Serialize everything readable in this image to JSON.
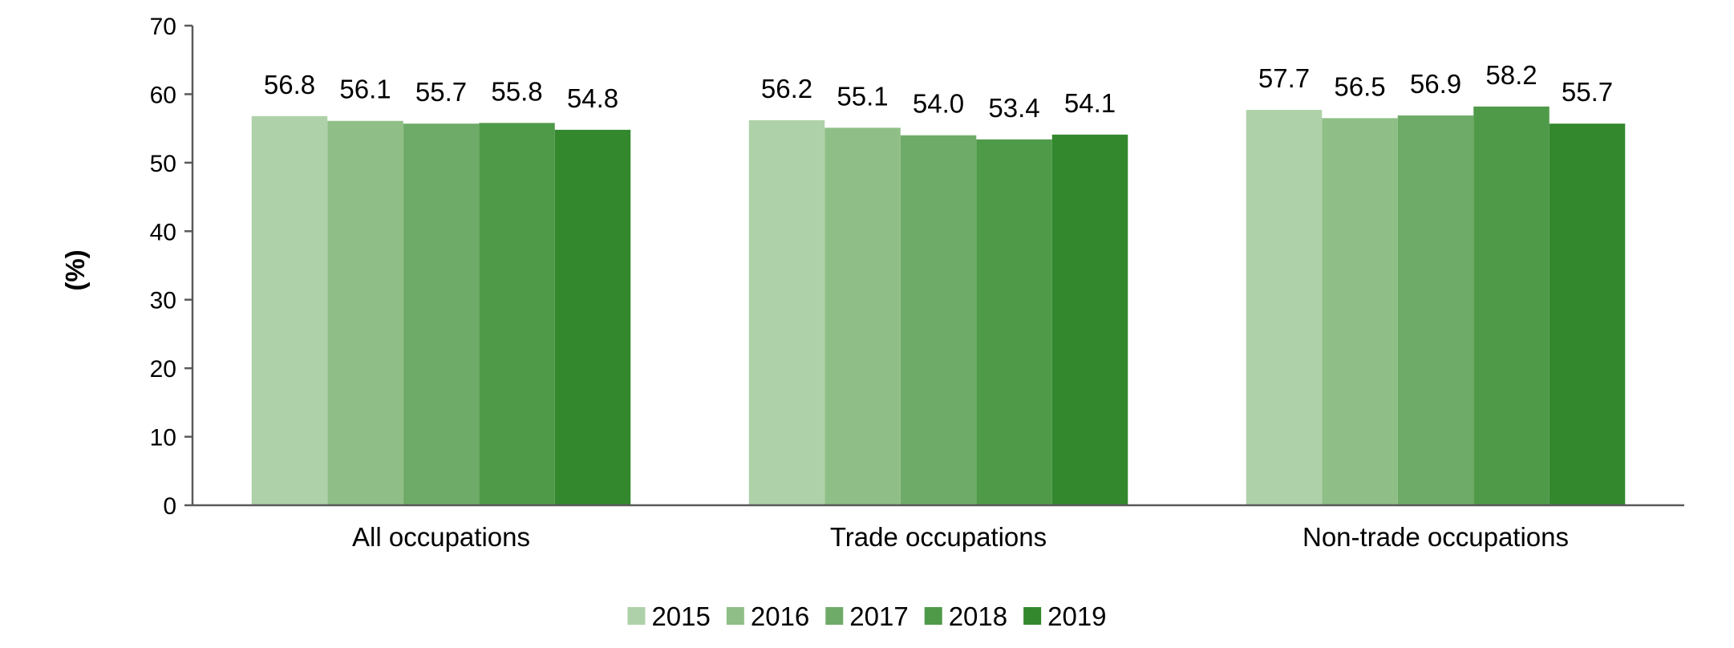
{
  "chart_data": {
    "type": "bar",
    "categories": [
      "All occupations",
      "Trade occupations",
      "Non-trade occupations"
    ],
    "series": [
      {
        "name": "2015",
        "color": "#afd1a9",
        "values": [
          56.8,
          56.2,
          57.7
        ]
      },
      {
        "name": "2016",
        "color": "#8fbf87",
        "values": [
          56.1,
          55.1,
          56.5
        ]
      },
      {
        "name": "2017",
        "color": "#6fab68",
        "values": [
          55.7,
          54.0,
          56.9
        ]
      },
      {
        "name": "2018",
        "color": "#4f9a49",
        "values": [
          55.8,
          53.4,
          58.2
        ]
      },
      {
        "name": "2019",
        "color": "#33882e",
        "values": [
          54.8,
          54.1,
          55.7
        ]
      }
    ],
    "data_labels": [
      [
        "56.8",
        "56.2",
        "57.7"
      ],
      [
        "56.1",
        "55.1",
        "56.5"
      ],
      [
        "55.7",
        "54.0",
        "56.9"
      ],
      [
        "55.8",
        "53.4",
        "58.2"
      ],
      [
        "54.8",
        "54.1",
        "55.7"
      ]
    ],
    "title": "",
    "xlabel": "",
    "ylabel": "(%)",
    "ylim": [
      0,
      70
    ],
    "yticks": [
      "0",
      "10",
      "20",
      "30",
      "40",
      "50",
      "60",
      "70"
    ],
    "grid": false,
    "legend_position": "bottom-center"
  }
}
